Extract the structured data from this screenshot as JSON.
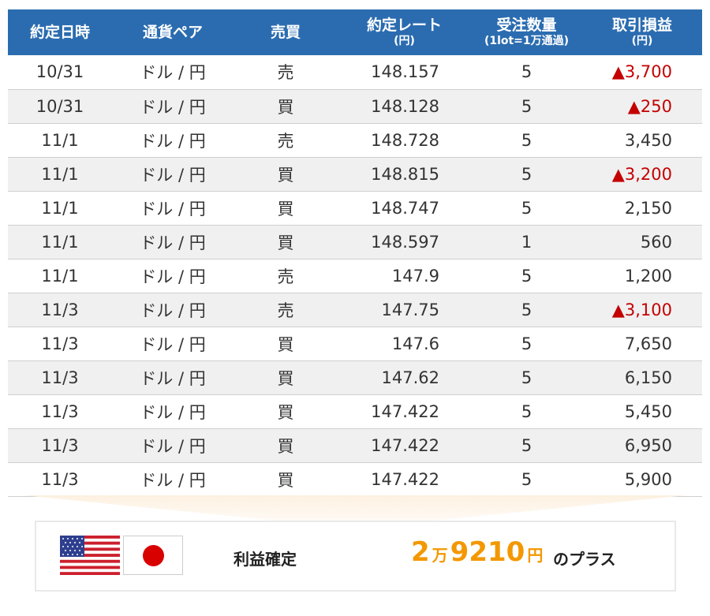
{
  "table": {
    "headers": {
      "date": "約定日時",
      "pair": "通貨ペア",
      "side": "売買",
      "rate": "約定レート",
      "rate_unit": "(円)",
      "qty": "受注数量",
      "qty_unit": "(1lot=1万通過)",
      "pl": "取引損益",
      "pl_unit": "(円)"
    },
    "rows": [
      {
        "date": "10/31",
        "pair": "ドル / 円",
        "side": "売",
        "rate": "148.157",
        "qty": "5",
        "pl": "▲3,700",
        "negative": true
      },
      {
        "date": "10/31",
        "pair": "ドル / 円",
        "side": "買",
        "rate": "148.128",
        "qty": "5",
        "pl": "▲250",
        "negative": true
      },
      {
        "date": "11/1",
        "pair": "ドル / 円",
        "side": "売",
        "rate": "148.728",
        "qty": "5",
        "pl": "3,450",
        "negative": false
      },
      {
        "date": "11/1",
        "pair": "ドル / 円",
        "side": "買",
        "rate": "148.815",
        "qty": "5",
        "pl": "▲3,200",
        "negative": true
      },
      {
        "date": "11/1",
        "pair": "ドル / 円",
        "side": "買",
        "rate": "148.747",
        "qty": "5",
        "pl": "2,150",
        "negative": false
      },
      {
        "date": "11/1",
        "pair": "ドル / 円",
        "side": "買",
        "rate": "148.597",
        "qty": "1",
        "pl": "560",
        "negative": false
      },
      {
        "date": "11/1",
        "pair": "ドル / 円",
        "side": "売",
        "rate": "147.9",
        "qty": "5",
        "pl": "1,200",
        "negative": false
      },
      {
        "date": "11/3",
        "pair": "ドル / 円",
        "side": "売",
        "rate": "147.75",
        "qty": "5",
        "pl": "▲3,100",
        "negative": true
      },
      {
        "date": "11/3",
        "pair": "ドル / 円",
        "side": "買",
        "rate": "147.6",
        "qty": "5",
        "pl": "7,650",
        "negative": false
      },
      {
        "date": "11/3",
        "pair": "ドル / 円",
        "side": "買",
        "rate": "147.62",
        "qty": "5",
        "pl": "6,150",
        "negative": false
      },
      {
        "date": "11/3",
        "pair": "ドル / 円",
        "side": "買",
        "rate": "147.422",
        "qty": "5",
        "pl": "5,450",
        "negative": false
      },
      {
        "date": "11/3",
        "pair": "ドル / 円",
        "side": "買",
        "rate": "147.422",
        "qty": "5",
        "pl": "6,950",
        "negative": false
      },
      {
        "date": "11/3",
        "pair": "ドル / 円",
        "side": "買",
        "rate": "147.422",
        "qty": "5",
        "pl": "5,900",
        "negative": false
      }
    ]
  },
  "summary": {
    "label": "利益確定",
    "amount_man": "2",
    "amount_man_unit": "万",
    "amount_rest": "9210",
    "amount_yen_unit": "円",
    "suffix": "のプラス",
    "flags": [
      "us-flag-icon",
      "japan-flag-icon"
    ]
  },
  "colors": {
    "header_bg": "#2b6cb0",
    "negative_text": "#c40000",
    "amount_text": "#f39800",
    "arrow_fill": "#fdf1e1"
  }
}
